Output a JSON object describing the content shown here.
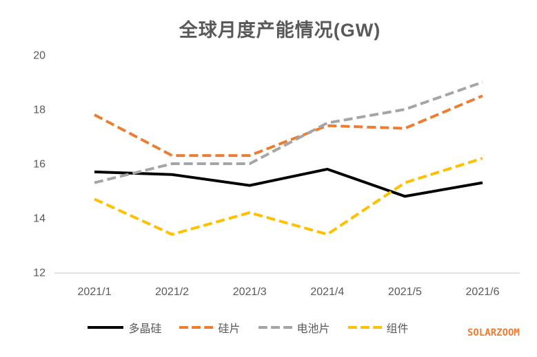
{
  "title": "全球月度产能情况(GW)",
  "watermark": "SOLARZOOM",
  "colors": {
    "title_text": "#595959",
    "axis_text": "#595959",
    "axis_line": "#D9D9D9",
    "series_black": "#000000",
    "series_orange": "#ED7D31",
    "series_gray": "#A5A5A5",
    "series_yellow": "#FFC000",
    "watermark_orange": "#ED7D31"
  },
  "chart_data": {
    "type": "line",
    "title": "全球月度产能情况(GW)",
    "categories": [
      "2021/1",
      "2021/2",
      "2021/3",
      "2021/4",
      "2021/5",
      "2021/6"
    ],
    "series": [
      {
        "name": "多晶硅",
        "color": "#000000",
        "dash": "solid",
        "values": [
          15.7,
          15.6,
          15.2,
          15.8,
          14.8,
          15.3
        ]
      },
      {
        "name": "硅片",
        "color": "#ED7D31",
        "dash": "dashed",
        "values": [
          17.8,
          16.3,
          16.3,
          17.4,
          17.3,
          18.5
        ]
      },
      {
        "name": "电池片",
        "color": "#A5A5A5",
        "dash": "dashed",
        "values": [
          15.3,
          16.0,
          16.0,
          17.5,
          18.0,
          19.0
        ]
      },
      {
        "name": "组件",
        "color": "#FFC000",
        "dash": "dashed",
        "values": [
          14.7,
          13.4,
          14.2,
          13.4,
          15.3,
          16.2
        ]
      }
    ],
    "xlabel": "",
    "ylabel": "",
    "ylim": [
      12,
      20
    ],
    "yticks": [
      20,
      18,
      16,
      14,
      12
    ],
    "grid": false,
    "legend_position": "bottom"
  }
}
